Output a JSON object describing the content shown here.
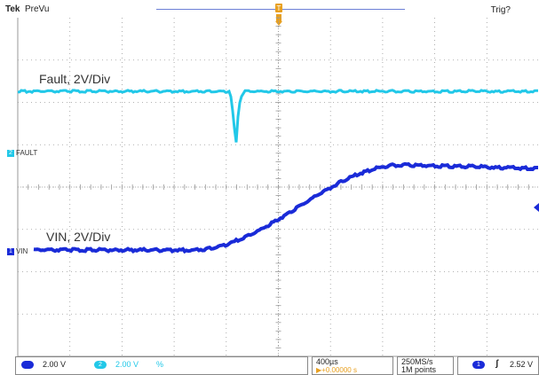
{
  "header": {
    "brand": "Tek",
    "acquisition_mode": "PreVu",
    "trigger_status": "Trig?"
  },
  "channels": [
    {
      "id": "2",
      "marker_label": "FAULT",
      "annotation": "Fault, 2V/Div",
      "scale": "2.00 V",
      "color": "#22c8e8"
    },
    {
      "id": "1",
      "marker_label": "VIN",
      "annotation": "VIN, 2V/Div",
      "scale": "2.00 V",
      "color": "#1a2bd8"
    }
  ],
  "statusbar": {
    "ch1_scale": "2.00 V",
    "ch2_scale": "2.00 V",
    "ch2_extra": "%",
    "timebase": "400µs",
    "trigger_offset": "▶+0.00000 s",
    "sample_rate": "250MS/s",
    "record_length": "1M points",
    "trigger_channel": "1",
    "trigger_slope": "ʃ",
    "trigger_level": "2.52 V"
  },
  "colors": {
    "grid": "#9a9a9a",
    "trigger_marker": "#e8a020"
  }
}
